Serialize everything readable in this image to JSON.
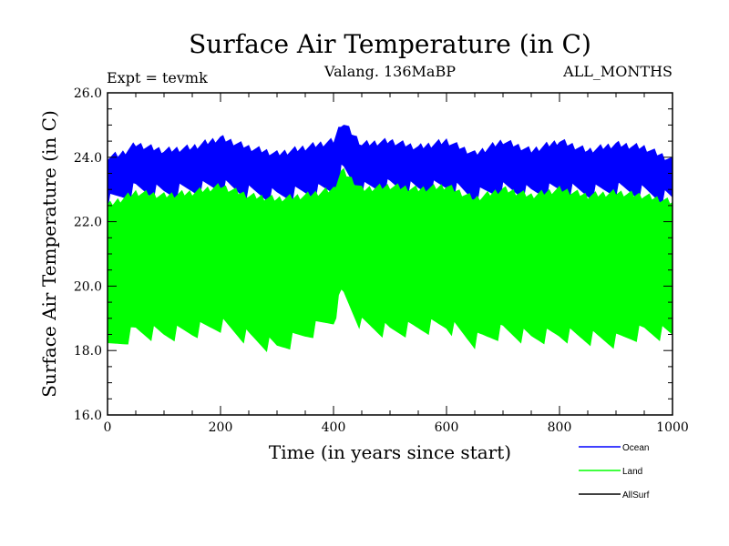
{
  "chart_data": {
    "type": "area",
    "title": "Surface Air Temperature (in C)",
    "subtitle": "Valang. 136MaBP",
    "left_label": "Expt = tevmk",
    "right_label": "ALL_MONTHS",
    "xlabel": "Time (in years since start)",
    "ylabel": "Surface Air Temperature (in C)",
    "xlim": [
      0,
      1000
    ],
    "ylim": [
      16.0,
      26.0
    ],
    "x_ticks": [
      0,
      200,
      400,
      600,
      800,
      1000
    ],
    "x_tick_labels": [
      "0",
      "200",
      "400",
      "600",
      "800",
      "1000"
    ],
    "y_ticks": [
      16,
      18,
      20,
      22,
      24,
      26
    ],
    "y_tick_labels": [
      "16.0",
      "18.0",
      "20.0",
      "22.0",
      "24.0",
      "26.0"
    ],
    "legend_position": "bottom-right",
    "series": [
      {
        "name": "Ocean",
        "color": "#0000ff",
        "x": [
          0,
          25,
          50,
          100,
          150,
          200,
          250,
          300,
          350,
          400,
          415,
          450,
          500,
          550,
          600,
          650,
          700,
          750,
          800,
          850,
          900,
          950,
          1000
        ],
        "upper": [
          24.0,
          24.1,
          24.4,
          24.2,
          24.3,
          24.6,
          24.3,
          24.1,
          24.3,
          24.5,
          25.1,
          24.4,
          24.5,
          24.3,
          24.5,
          24.1,
          24.5,
          24.2,
          24.5,
          24.2,
          24.4,
          24.3,
          23.9
        ],
        "lower": [
          22.6,
          22.8,
          23.0,
          22.9,
          23.0,
          23.1,
          22.9,
          22.8,
          22.9,
          23.0,
          23.6,
          23.0,
          23.1,
          23.0,
          23.1,
          22.8,
          23.0,
          22.9,
          23.0,
          22.9,
          23.0,
          22.9,
          22.7
        ]
      },
      {
        "name": "Land",
        "color": "#00ff00",
        "x": [
          0,
          25,
          50,
          100,
          150,
          200,
          250,
          300,
          350,
          400,
          415,
          450,
          500,
          550,
          600,
          650,
          700,
          750,
          800,
          850,
          900,
          950,
          1000
        ],
        "upper": [
          22.5,
          22.7,
          22.9,
          22.8,
          22.9,
          23.1,
          22.8,
          22.7,
          22.8,
          23.0,
          23.6,
          23.0,
          23.1,
          23.0,
          23.1,
          22.7,
          23.0,
          22.8,
          23.0,
          22.8,
          22.9,
          22.8,
          22.6
        ],
        "lower": [
          18.0,
          18.3,
          18.6,
          18.5,
          18.6,
          18.8,
          18.4,
          18.1,
          18.5,
          19.0,
          19.8,
          18.8,
          18.6,
          18.7,
          18.8,
          18.3,
          18.6,
          18.4,
          18.5,
          18.4,
          18.3,
          18.6,
          18.5
        ]
      },
      {
        "name": "AllSurf",
        "color": "#000000"
      }
    ]
  }
}
